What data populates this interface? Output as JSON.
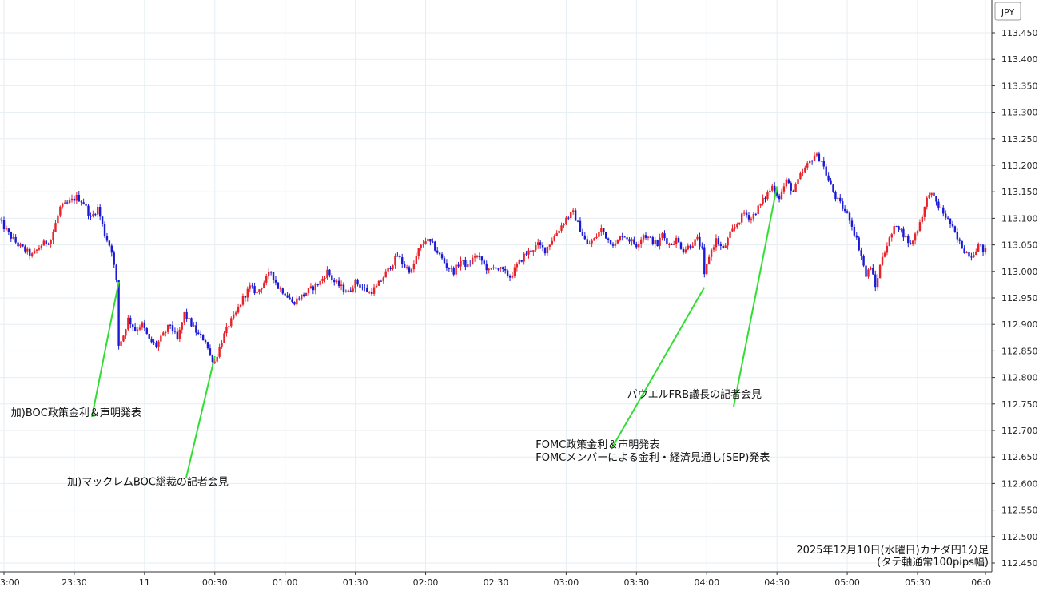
{
  "chart_data": {
    "type": "candlestick",
    "currency_label": "JPY",
    "caption_lines": [
      "2025年12月10日(水曜日)カナダ円1分足",
      "(タテ軸通常100pips幅)"
    ],
    "ylim": [
      112.45,
      113.48
    ],
    "y_ticks": [
      "113.450",
      "113.400",
      "113.350",
      "113.300",
      "113.250",
      "113.200",
      "113.150",
      "113.100",
      "113.050",
      "113.000",
      "112.950",
      "112.900",
      "112.850",
      "112.800",
      "112.750",
      "112.700",
      "112.650",
      "112.600",
      "112.550",
      "112.500",
      "112.450"
    ],
    "x_start_minute": -62,
    "x_end_minute": 359,
    "x_ticks": [
      {
        "label": "3:00",
        "minute": -60
      },
      {
        "label": "23:30",
        "minute": -30
      },
      {
        "label": "11",
        "minute": 0
      },
      {
        "label": "00:30",
        "minute": 30
      },
      {
        "label": "01:00",
        "minute": 60
      },
      {
        "label": "01:30",
        "minute": 90
      },
      {
        "label": "02:00",
        "minute": 120
      },
      {
        "label": "02:30",
        "minute": 150
      },
      {
        "label": "03:00",
        "minute": 180
      },
      {
        "label": "03:30",
        "minute": 210
      },
      {
        "label": "04:00",
        "minute": 240
      },
      {
        "label": "04:30",
        "minute": 270
      },
      {
        "label": "05:00",
        "minute": 300
      },
      {
        "label": "05:30",
        "minute": 330
      },
      {
        "label": "06:0",
        "minute": 359
      }
    ],
    "price_path": [
      [
        -62,
        113.1
      ],
      [
        -60,
        113.09
      ],
      [
        -57,
        113.07
      ],
      [
        -53,
        113.05
      ],
      [
        -50,
        113.04
      ],
      [
        -47,
        113.03
      ],
      [
        -43,
        113.05
      ],
      [
        -39,
        113.06
      ],
      [
        -35,
        113.12
      ],
      [
        -31,
        113.13
      ],
      [
        -28,
        113.14
      ],
      [
        -25,
        113.13
      ],
      [
        -22,
        113.1
      ],
      [
        -19,
        113.12
      ],
      [
        -16,
        113.07
      ],
      [
        -13,
        113.04
      ],
      [
        -11,
        112.98
      ],
      [
        -10,
        112.86
      ],
      [
        -8,
        112.88
      ],
      [
        -6,
        112.91
      ],
      [
        -3,
        112.89
      ],
      [
        0,
        112.9
      ],
      [
        3,
        112.87
      ],
      [
        6,
        112.86
      ],
      [
        9,
        112.88
      ],
      [
        12,
        112.9
      ],
      [
        15,
        112.87
      ],
      [
        18,
        112.92
      ],
      [
        21,
        112.9
      ],
      [
        24,
        112.88
      ],
      [
        27,
        112.87
      ],
      [
        29,
        112.84
      ],
      [
        31,
        112.83
      ],
      [
        34,
        112.87
      ],
      [
        37,
        112.9
      ],
      [
        40,
        112.92
      ],
      [
        43,
        112.95
      ],
      [
        46,
        112.97
      ],
      [
        49,
        112.96
      ],
      [
        52,
        112.98
      ],
      [
        55,
        113.0
      ],
      [
        58,
        112.97
      ],
      [
        61,
        112.96
      ],
      [
        64,
        112.94
      ],
      [
        67,
        112.95
      ],
      [
        70,
        112.96
      ],
      [
        73,
        112.97
      ],
      [
        76,
        112.98
      ],
      [
        79,
        113.0
      ],
      [
        82,
        112.98
      ],
      [
        85,
        112.97
      ],
      [
        88,
        112.96
      ],
      [
        91,
        112.98
      ],
      [
        94,
        112.97
      ],
      [
        97,
        112.96
      ],
      [
        100,
        112.97
      ],
      [
        103,
        112.99
      ],
      [
        106,
        113.01
      ],
      [
        109,
        113.03
      ],
      [
        112,
        113.01
      ],
      [
        115,
        113.0
      ],
      [
        118,
        113.04
      ],
      [
        121,
        113.06
      ],
      [
        124,
        113.05
      ],
      [
        127,
        113.03
      ],
      [
        130,
        113.01
      ],
      [
        133,
        113.0
      ],
      [
        136,
        113.02
      ],
      [
        139,
        113.01
      ],
      [
        142,
        113.03
      ],
      [
        145,
        113.02
      ],
      [
        148,
        113.0
      ],
      [
        151,
        113.01
      ],
      [
        154,
        113.0
      ],
      [
        157,
        112.99
      ],
      [
        160,
        113.01
      ],
      [
        163,
        113.03
      ],
      [
        166,
        113.04
      ],
      [
        169,
        113.05
      ],
      [
        172,
        113.04
      ],
      [
        175,
        113.06
      ],
      [
        178,
        113.08
      ],
      [
        181,
        113.1
      ],
      [
        184,
        113.11
      ],
      [
        187,
        113.08
      ],
      [
        190,
        113.05
      ],
      [
        193,
        113.06
      ],
      [
        196,
        113.08
      ],
      [
        199,
        113.06
      ],
      [
        202,
        113.05
      ],
      [
        205,
        113.07
      ],
      [
        208,
        113.06
      ],
      [
        211,
        113.05
      ],
      [
        214,
        113.07
      ],
      [
        217,
        113.06
      ],
      [
        220,
        113.05
      ],
      [
        222,
        113.07
      ],
      [
        225,
        113.05
      ],
      [
        228,
        113.06
      ],
      [
        231,
        113.04
      ],
      [
        234,
        113.05
      ],
      [
        237,
        113.06
      ],
      [
        239,
        113.04
      ],
      [
        240,
        112.99
      ],
      [
        242,
        113.03
      ],
      [
        245,
        113.06
      ],
      [
        248,
        113.04
      ],
      [
        251,
        113.07
      ],
      [
        254,
        113.09
      ],
      [
        257,
        113.11
      ],
      [
        260,
        113.1
      ],
      [
        263,
        113.12
      ],
      [
        266,
        113.14
      ],
      [
        269,
        113.16
      ],
      [
        272,
        113.14
      ],
      [
        275,
        113.17
      ],
      [
        278,
        113.15
      ],
      [
        281,
        113.18
      ],
      [
        284,
        113.2
      ],
      [
        287,
        113.22
      ],
      [
        290,
        113.21
      ],
      [
        293,
        113.17
      ],
      [
        296,
        113.14
      ],
      [
        299,
        113.12
      ],
      [
        302,
        113.1
      ],
      [
        305,
        113.06
      ],
      [
        307,
        113.03
      ],
      [
        309,
        112.99
      ],
      [
        311,
        113.01
      ],
      [
        313,
        112.97
      ],
      [
        316,
        113.03
      ],
      [
        319,
        113.06
      ],
      [
        322,
        113.09
      ],
      [
        325,
        113.07
      ],
      [
        328,
        113.05
      ],
      [
        331,
        113.08
      ],
      [
        334,
        113.12
      ],
      [
        336,
        113.15
      ],
      [
        339,
        113.13
      ],
      [
        342,
        113.11
      ],
      [
        345,
        113.09
      ],
      [
        348,
        113.06
      ],
      [
        351,
        113.04
      ],
      [
        354,
        113.03
      ],
      [
        357,
        113.05
      ],
      [
        359,
        113.04
      ]
    ],
    "annotations": [
      {
        "text": "加)BOC政策金利＆声明発表",
        "minute": -11,
        "price": 112.98,
        "label_minute": -57,
        "label_price": 112.727
      },
      {
        "text": "加)マックレムBOC総裁の記者会見",
        "minute": 30,
        "price": 112.84,
        "label_minute": -33,
        "label_price": 112.597
      },
      {
        "text": "FOMC政策金利＆声明発表",
        "minute": 239,
        "price": 112.97,
        "label_minute": 167,
        "label_price": 112.667
      },
      {
        "text": "FOMCメンバーによる金利・経済見通し(SEP)発表",
        "minute": 239,
        "price": 112.97,
        "label_minute": 167,
        "label_price": 112.643
      },
      {
        "text": "パウエルFRB議長の記者会見",
        "minute": 270,
        "price": 113.16,
        "label_minute": 206,
        "label_price": 112.762
      }
    ],
    "colors": {
      "up": "#e8222a",
      "down": "#1a1ad6",
      "annotation_line": "#33dd33",
      "grid": "#e6eef2",
      "axis": "#333333"
    }
  }
}
